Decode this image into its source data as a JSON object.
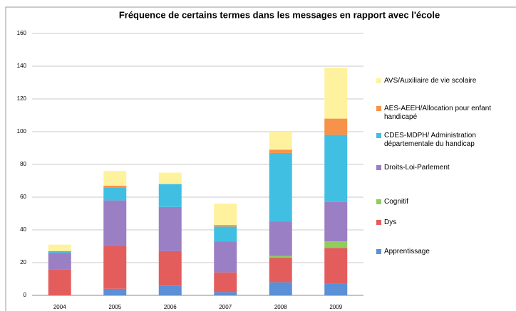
{
  "chart_data": {
    "type": "stacked_bar",
    "title": "Fréquence de certains termes dans les messages en rapport avec l'école",
    "categories": [
      "2004",
      "2005",
      "2006",
      "2007",
      "2008",
      "2009"
    ],
    "series": [
      {
        "name": "Apprentissage",
        "color": "#5b8fd6",
        "values": [
          0,
          4,
          6,
          2,
          8,
          7
        ]
      },
      {
        "name": "Dys",
        "color": "#e35d5d",
        "values": [
          16,
          26,
          21,
          12,
          15,
          22
        ]
      },
      {
        "name": "Cognitif",
        "color": "#8fce5c",
        "values": [
          0,
          0,
          0,
          0,
          1,
          4
        ]
      },
      {
        "name": "Droits-Loi-Parlement",
        "color": "#9b7fc4",
        "values": [
          10,
          28,
          27,
          19,
          21,
          24
        ]
      },
      {
        "name": "CDES-MDPH/ Administration départementale du handicap",
        "color": "#41bfe2",
        "values": [
          1,
          8,
          14,
          9,
          42,
          41
        ]
      },
      {
        "name": "AES-AEEH/Allocation pour enfant handicapé",
        "color": "#f6924a",
        "values": [
          0,
          1,
          0,
          1,
          2,
          10
        ]
      },
      {
        "name": "AVS/Auxiliaire de vie scolaire",
        "color": "#fff29e",
        "values": [
          4,
          9,
          7,
          13,
          11,
          31
        ]
      }
    ],
    "ylim": [
      0,
      160
    ],
    "yticks": [
      0,
      20,
      40,
      60,
      80,
      100,
      120,
      140,
      160
    ],
    "grid": true
  }
}
